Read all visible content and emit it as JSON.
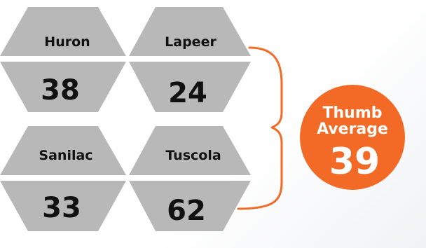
{
  "counties": [
    {
      "name": "Huron",
      "value": "38"
    },
    {
      "name": "Lapeer",
      "value": "24"
    },
    {
      "name": "Sanilac",
      "value": "33"
    },
    {
      "name": "Tuscola",
      "value": "62"
    }
  ],
  "summary": {
    "label_line1": "Thumb",
    "label_line2": "Average",
    "value": "39"
  },
  "colors": {
    "hex_fill": "#b8b8b8",
    "hex_stroke": "#ffffff",
    "accent": "#f26a25",
    "text_dark": "#111111",
    "text_light": "#ffffff"
  }
}
